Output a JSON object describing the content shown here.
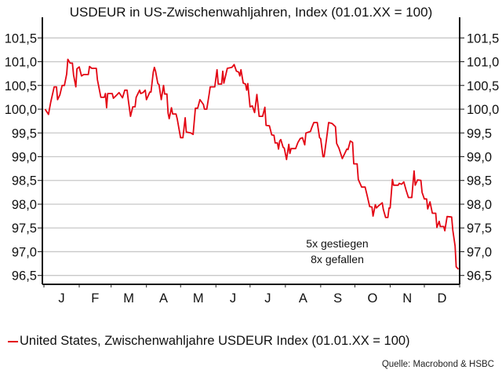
{
  "chart_data": {
    "type": "line",
    "title": "USDEUR in US-Zwischenwahljahren, Index (01.01.XX = 100)",
    "xlabel": "",
    "ylabel": "",
    "ylim": [
      96.5,
      101.5
    ],
    "yticks": [
      "96,5",
      "97,0",
      "97,5",
      "98,0",
      "98,5",
      "99,0",
      "99,5",
      "100,0",
      "100,5",
      "101,0",
      "101,5"
    ],
    "ytick_values": [
      96.5,
      97,
      97.5,
      98,
      98.5,
      99,
      99.5,
      100,
      100.5,
      101,
      101.5
    ],
    "y_axis_sides": [
      "left",
      "right"
    ],
    "xticks": [
      "J",
      "F",
      "M",
      "A",
      "M",
      "J",
      "J",
      "A",
      "S",
      "O",
      "N",
      "D"
    ],
    "grid": "horizontal",
    "legend_position": "bottom-left",
    "line_color": "#e30613",
    "annotations": [
      "5x gestiegen",
      "8x gefallen"
    ],
    "source": "Quelle: Macrobond & HSBC",
    "series": [
      {
        "name": "United States, Zwischenwahljahre USDEUR Index (01.01.XX = 100)",
        "points": [
          [
            "01-02",
            100.0
          ],
          [
            "01-05",
            99.89
          ],
          [
            "01-07",
            100.15
          ],
          [
            "01-10",
            100.47
          ],
          [
            "01-12",
            100.47
          ],
          [
            "01-13",
            100.2
          ],
          [
            "01-15",
            100.3
          ],
          [
            "01-17",
            100.5
          ],
          [
            "01-19",
            100.5
          ],
          [
            "01-21",
            100.74
          ],
          [
            "01-22",
            101.05
          ],
          [
            "01-24",
            100.97
          ],
          [
            "01-26",
            100.97
          ],
          [
            "01-27",
            100.72
          ],
          [
            "01-29",
            100.47
          ],
          [
            "01-30",
            100.85
          ],
          [
            "02-01",
            100.89
          ],
          [
            "02-03",
            100.7
          ],
          [
            "02-05",
            100.73
          ],
          [
            "02-09",
            100.73
          ],
          [
            "02-10",
            100.9
          ],
          [
            "02-12",
            100.86
          ],
          [
            "02-16",
            100.86
          ],
          [
            "02-17",
            100.62
          ],
          [
            "02-20",
            100.25
          ],
          [
            "02-23",
            100.25
          ],
          [
            "02-24",
            100.33
          ],
          [
            "02-25",
            100.03
          ],
          [
            "02-26",
            100.33
          ],
          [
            "03-02",
            100.33
          ],
          [
            "03-03",
            100.23
          ],
          [
            "03-06",
            100.3
          ],
          [
            "03-08",
            100.35
          ],
          [
            "03-11",
            100.24
          ],
          [
            "03-13",
            100.4
          ],
          [
            "03-15",
            100.4
          ],
          [
            "03-16",
            100.2
          ],
          [
            "03-18",
            99.85
          ],
          [
            "03-20",
            100.05
          ],
          [
            "03-22",
            100.05
          ],
          [
            "03-23",
            100.25
          ],
          [
            "03-26",
            100.4
          ],
          [
            "03-27",
            100.33
          ],
          [
            "03-29",
            100.35
          ],
          [
            "03-31",
            100.4
          ],
          [
            "04-01",
            100.2
          ],
          [
            "04-04",
            100.36
          ],
          [
            "04-05",
            100.36
          ],
          [
            "04-07",
            100.78
          ],
          [
            "04-08",
            100.88
          ],
          [
            "04-09",
            100.8
          ],
          [
            "04-11",
            100.54
          ],
          [
            "04-12",
            100.52
          ],
          [
            "04-14",
            100.2
          ],
          [
            "04-16",
            100.5
          ],
          [
            "04-17",
            100.32
          ],
          [
            "04-19",
            100.32
          ],
          [
            "04-20",
            99.92
          ],
          [
            "04-21",
            99.8
          ],
          [
            "04-23",
            100.03
          ],
          [
            "04-24",
            99.9
          ],
          [
            "04-27",
            99.9
          ],
          [
            "04-28",
            99.8
          ],
          [
            "05-01",
            99.4
          ],
          [
            "05-03",
            99.4
          ],
          [
            "05-05",
            99.82
          ],
          [
            "05-06",
            99.52
          ],
          [
            "05-10",
            99.5
          ],
          [
            "05-12",
            99.47
          ],
          [
            "05-14",
            100.02
          ],
          [
            "05-16",
            100.02
          ],
          [
            "05-18",
            100.2
          ],
          [
            "05-21",
            100.1
          ],
          [
            "05-22",
            100.0
          ],
          [
            "05-24",
            100.0
          ],
          [
            "05-26",
            100.3
          ],
          [
            "05-27",
            100.47
          ],
          [
            "05-31",
            100.47
          ],
          [
            "06-02",
            100.83
          ],
          [
            "06-03",
            100.53
          ],
          [
            "06-06",
            100.53
          ],
          [
            "06-07",
            100.8
          ],
          [
            "06-08",
            100.55
          ],
          [
            "06-11",
            100.86
          ],
          [
            "06-15",
            100.88
          ],
          [
            "06-17",
            100.94
          ],
          [
            "06-19",
            100.8
          ],
          [
            "06-21",
            100.78
          ],
          [
            "06-22",
            100.7
          ],
          [
            "06-23",
            100.83
          ],
          [
            "06-25",
            100.55
          ],
          [
            "06-27",
            100.53
          ],
          [
            "06-28",
            100.4
          ],
          [
            "06-29",
            100.54
          ],
          [
            "07-01",
            100.05
          ],
          [
            "07-03",
            100.07
          ],
          [
            "07-05",
            99.93
          ],
          [
            "07-07",
            100.31
          ],
          [
            "07-09",
            99.85
          ],
          [
            "07-12",
            99.85
          ],
          [
            "07-14",
            100.04
          ],
          [
            "07-15",
            99.66
          ],
          [
            "07-18",
            99.65
          ],
          [
            "07-20",
            99.46
          ],
          [
            "07-22",
            99.45
          ],
          [
            "07-23",
            99.29
          ],
          [
            "07-25",
            99.29
          ],
          [
            "07-26",
            99.16
          ],
          [
            "07-27",
            99.33
          ],
          [
            "07-28",
            99.36
          ],
          [
            "07-30",
            99.2
          ],
          [
            "07-31",
            99.18
          ],
          [
            "08-02",
            98.94
          ],
          [
            "08-04",
            99.26
          ],
          [
            "08-05",
            99.07
          ],
          [
            "08-06",
            99.17
          ],
          [
            "08-10",
            99.17
          ],
          [
            "08-12",
            99.3
          ],
          [
            "08-14",
            99.38
          ],
          [
            "08-16",
            99.4
          ],
          [
            "08-18",
            99.25
          ],
          [
            "08-19",
            99.5
          ],
          [
            "08-23",
            99.53
          ],
          [
            "08-24",
            99.6
          ],
          [
            "08-26",
            99.72
          ],
          [
            "08-29",
            99.72
          ],
          [
            "08-31",
            99.4
          ],
          [
            "09-01",
            99.38
          ],
          [
            "09-03",
            99.0
          ],
          [
            "09-04",
            99.0
          ],
          [
            "09-06",
            99.35
          ],
          [
            "09-08",
            99.72
          ],
          [
            "09-11",
            99.7
          ],
          [
            "09-14",
            99.63
          ],
          [
            "09-15",
            99.28
          ],
          [
            "09-17",
            99.18
          ],
          [
            "09-20",
            98.96
          ],
          [
            "09-22",
            99.06
          ],
          [
            "09-24",
            99.16
          ],
          [
            "09-25",
            99.15
          ],
          [
            "09-27",
            99.33
          ],
          [
            "09-29",
            99.3
          ],
          [
            "09-30",
            98.85
          ],
          [
            "10-03",
            98.85
          ],
          [
            "10-04",
            98.52
          ],
          [
            "10-07",
            98.36
          ],
          [
            "10-10",
            98.36
          ],
          [
            "10-12",
            98.16
          ],
          [
            "10-14",
            97.95
          ],
          [
            "10-16",
            97.94
          ],
          [
            "10-17",
            97.75
          ],
          [
            "10-19",
            97.99
          ],
          [
            "10-20",
            97.92
          ],
          [
            "10-22",
            97.97
          ],
          [
            "10-25",
            98.03
          ],
          [
            "10-26",
            97.89
          ],
          [
            "10-28",
            97.72
          ],
          [
            "10-30",
            97.72
          ],
          [
            "10-31",
            97.92
          ],
          [
            "11-01",
            97.92
          ],
          [
            "11-03",
            98.52
          ],
          [
            "11-04",
            98.4
          ],
          [
            "11-08",
            98.4
          ],
          [
            "11-09",
            98.44
          ],
          [
            "11-11",
            98.42
          ],
          [
            "11-13",
            98.47
          ],
          [
            "11-15",
            98.29
          ],
          [
            "11-17",
            98.14
          ],
          [
            "11-20",
            98.14
          ],
          [
            "11-22",
            98.7
          ],
          [
            "11-23",
            98.4
          ],
          [
            "11-25",
            98.51
          ],
          [
            "11-28",
            98.5
          ],
          [
            "11-29",
            98.25
          ],
          [
            "12-01",
            98.11
          ],
          [
            "12-03",
            98.11
          ],
          [
            "12-04",
            97.9
          ],
          [
            "12-06",
            98.05
          ],
          [
            "12-08",
            97.81
          ],
          [
            "12-11",
            97.81
          ],
          [
            "12-12",
            97.51
          ],
          [
            "12-14",
            97.64
          ],
          [
            "12-15",
            97.53
          ],
          [
            "12-18",
            97.53
          ],
          [
            "12-19",
            97.44
          ],
          [
            "12-21",
            97.74
          ],
          [
            "12-25",
            97.73
          ],
          [
            "12-26",
            97.45
          ],
          [
            "12-28",
            97.12
          ],
          [
            "12-29",
            96.68
          ],
          [
            "12-31",
            96.63
          ]
        ]
      }
    ]
  }
}
